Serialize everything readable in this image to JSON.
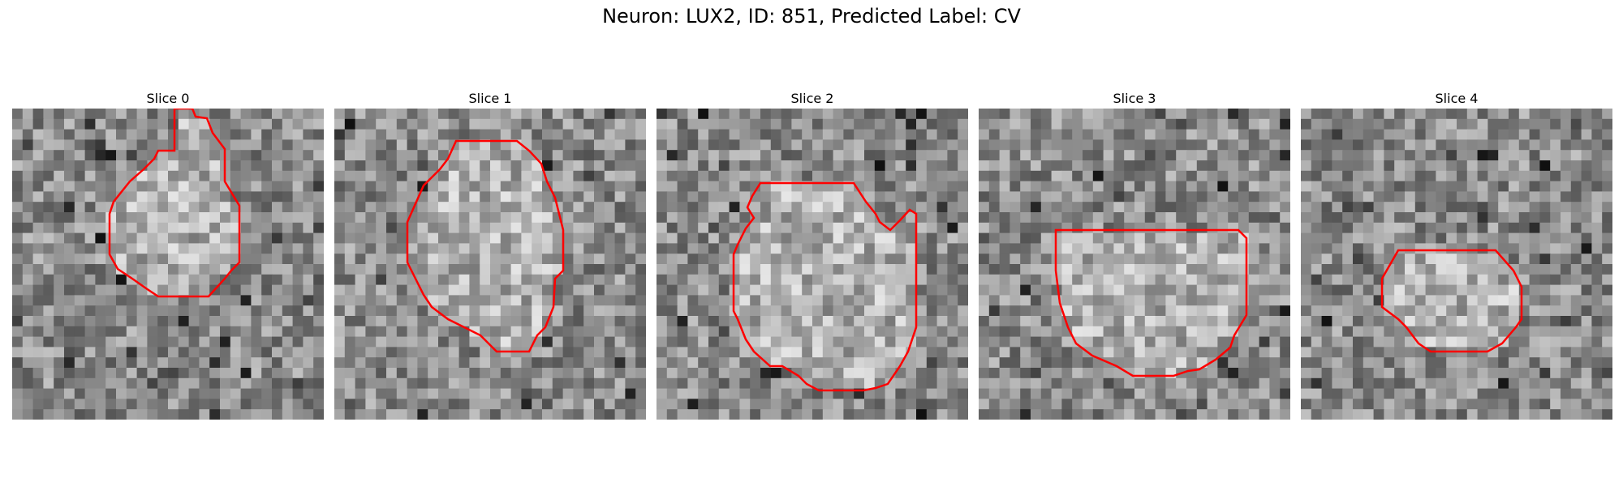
{
  "figure": {
    "suptitle": "Neuron: LUX2, ID: 851, Predicted Label: CV",
    "contour_color": "#ff0000",
    "colormap": "gray",
    "panels": [
      {
        "title": "Slice 0"
      },
      {
        "title": "Slice 1"
      },
      {
        "title": "Slice 2"
      },
      {
        "title": "Slice 3"
      },
      {
        "title": "Slice 4"
      }
    ]
  }
}
